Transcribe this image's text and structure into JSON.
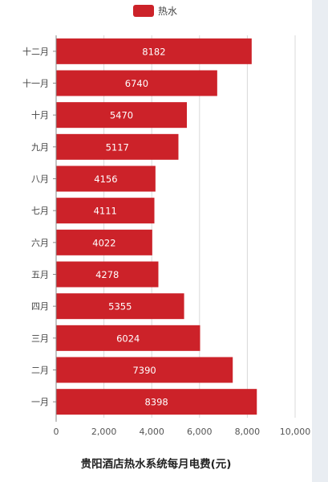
{
  "chart_data": {
    "type": "bar",
    "orientation": "horizontal",
    "title": "贵阳酒店热水系统每月电费(元)",
    "categories": [
      "十二月",
      "十一月",
      "十月",
      "九月",
      "八月",
      "七月",
      "六月",
      "五月",
      "四月",
      "三月",
      "二月",
      "一月"
    ],
    "series": [
      {
        "name": "热水",
        "color": "#cc2229",
        "values": [
          8182,
          6740,
          5470,
          5117,
          4156,
          4111,
          4022,
          4278,
          5355,
          6024,
          7390,
          8398
        ]
      }
    ],
    "data_labels": [
      "8182",
      "6740",
      "5470",
      "5117",
      "4156",
      "4111",
      "4022",
      "4278",
      "5355",
      "6024",
      "7390",
      "8398"
    ],
    "xlim": [
      0,
      10000
    ],
    "x_ticks": [
      0,
      2000,
      4000,
      6000,
      8000,
      10000
    ],
    "x_tick_labels": [
      "0",
      "2,000",
      "4,000",
      "6,000",
      "8,000",
      "10,000"
    ],
    "grid": true,
    "legend_position": "top-center"
  },
  "colors": {
    "bar": "#cc2229",
    "grid": "#d8d8d8",
    "axis": "#888888"
  }
}
